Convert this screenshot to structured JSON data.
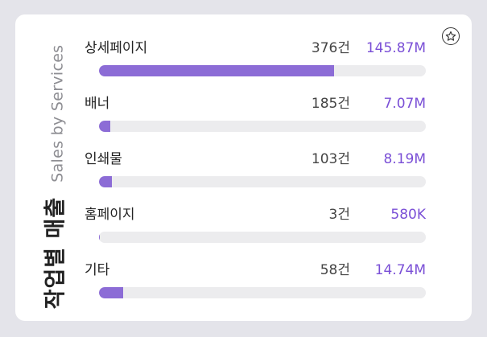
{
  "widget": {
    "title": "작업별 매출",
    "subtitle": "Sales by Services",
    "accent_color": "#8c6cd6",
    "amount_color": "#7a4fd6",
    "favorite_icon": "star-outline-icon"
  },
  "items": [
    {
      "label": "상세페이지",
      "count": "376건",
      "amount": "145.87M",
      "share": 0.72
    },
    {
      "label": "배너",
      "count": "185건",
      "amount": "7.07M",
      "share": 0.035
    },
    {
      "label": "인쇄물",
      "count": "103건",
      "amount": "8.19M",
      "share": 0.04
    },
    {
      "label": "홈페이지",
      "count": "3건",
      "amount": "580K",
      "share": 0.003
    },
    {
      "label": "기타",
      "count": "58건",
      "amount": "14.74M",
      "share": 0.075
    }
  ]
}
